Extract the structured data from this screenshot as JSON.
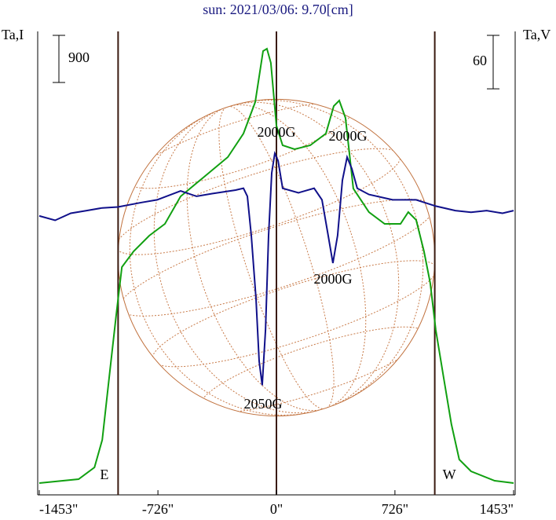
{
  "chart_data": {
    "type": "line",
    "title": "sun: 2021/03/06: 9.70[cm]",
    "ylabel": "Ta,I",
    "y2label": "Ta,V",
    "xlim": [
      -1453,
      1453
    ],
    "xticks": [
      {
        "value": -1453,
        "label": "-1453\""
      },
      {
        "value": -726,
        "label": "-726\""
      },
      {
        "value": 0,
        "label": "0\""
      },
      {
        "value": 726,
        "label": "726\""
      },
      {
        "value": 1453,
        "label": "1453\""
      }
    ],
    "ylim": [
      0,
      8850
    ],
    "y2lim": [
      -260,
      260
    ],
    "limb_lines": [
      -970,
      0,
      970
    ],
    "limb_labels": [
      "E",
      "W"
    ],
    "scale_bars": [
      {
        "value": 900,
        "label": "900"
      },
      {
        "value": 60,
        "label": "60",
        "axis": "y2"
      }
    ],
    "series": [
      {
        "name": "I",
        "color": "#11a011",
        "x": [
          -1453,
          -1212,
          -1115,
          -1067,
          -1019,
          -981,
          -947,
          -875,
          -779,
          -683,
          -587,
          -442,
          -298,
          -202,
          -130,
          -82,
          -58,
          -34,
          0,
          38,
          111,
          207,
          303,
          351,
          385,
          423,
          471,
          567,
          663,
          760,
          808,
          856,
          904,
          942,
          976,
          1024,
          1072,
          1120,
          1192,
          1337,
          1453
        ],
        "values": [
          225,
          300,
          525,
          1050,
          2400,
          3450,
          4350,
          4650,
          4950,
          5175,
          5700,
          6075,
          6450,
          6900,
          7500,
          8475,
          8520,
          8250,
          7050,
          6675,
          6600,
          6675,
          6900,
          7425,
          7530,
          7200,
          5850,
          5400,
          5175,
          5175,
          5400,
          5250,
          4650,
          4050,
          3150,
          2250,
          1350,
          675,
          450,
          270,
          225
        ]
      },
      {
        "name": "V",
        "color": "#10108a",
        "axis": "y2",
        "x": [
          -1453,
          -1356,
          -1260,
          -1163,
          -1067,
          -971,
          -827,
          -731,
          -587,
          -490,
          -394,
          -250,
          -202,
          -178,
          -154,
          -125,
          -106,
          -87,
          -67,
          -48,
          -29,
          -10,
          10,
          38,
          135,
          231,
          279,
          317,
          346,
          375,
          404,
          433,
          462,
          495,
          567,
          712,
          856,
          976,
          1096,
          1192,
          1288,
          1385,
          1453
        ],
        "values": [
          53,
          48,
          56,
          59,
          62,
          63,
          68,
          71,
          81,
          75,
          78,
          82,
          84,
          75,
          31,
          -40,
          -110,
          -137,
          -75,
          31,
          101,
          123,
          115,
          84,
          79,
          84,
          71,
          31,
          0,
          31,
          93,
          119,
          106,
          84,
          77,
          71,
          71,
          64,
          59,
          57,
          59,
          56,
          59
        ]
      }
    ],
    "annotations": [
      "2000G",
      "2000G",
      "2000G",
      "2050G"
    ]
  }
}
